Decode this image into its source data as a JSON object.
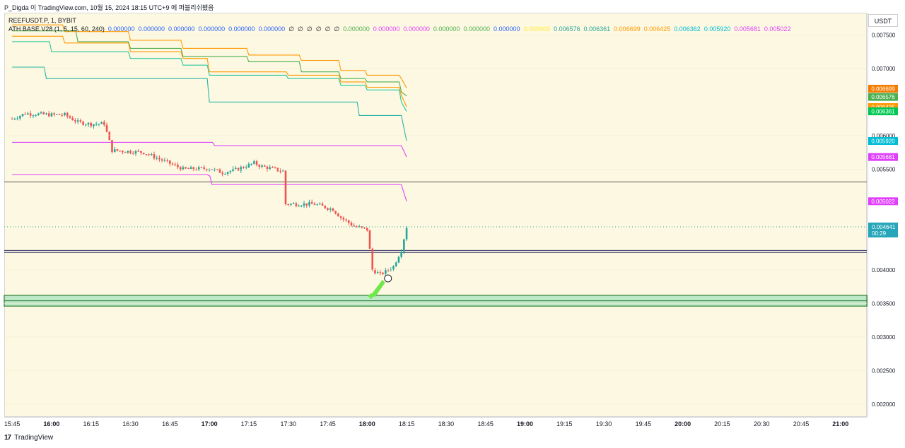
{
  "header": {
    "publisher_line": "P_Digda 이 TradingView.com, 10월 15, 2024 18:15 UTC+9 에 퍼블리쉬됐음"
  },
  "legend": {
    "symbol_line": "REEFUSDT.P, 1, BYBIT",
    "indicator_name": "ATH BASE V28 (1, 5, 15, 60, 240)",
    "values": [
      {
        "text": "0.000000",
        "color": "#2962ff"
      },
      {
        "text": "0.000000",
        "color": "#2962ff"
      },
      {
        "text": "0.000000",
        "color": "#2962ff"
      },
      {
        "text": "0.000000",
        "color": "#2962ff"
      },
      {
        "text": "0.000000",
        "color": "#2962ff"
      },
      {
        "text": "0.000000",
        "color": "#2962ff"
      },
      {
        "text": "∅",
        "color": "#131722"
      },
      {
        "text": "∅",
        "color": "#131722"
      },
      {
        "text": "∅",
        "color": "#131722"
      },
      {
        "text": "∅",
        "color": "#131722"
      },
      {
        "text": "∅",
        "color": "#131722"
      },
      {
        "text": "∅",
        "color": "#131722"
      },
      {
        "text": "0.000000",
        "color": "#4caf50"
      },
      {
        "text": "0.000000",
        "color": "#e040fb"
      },
      {
        "text": "0.000000",
        "color": "#e040fb"
      },
      {
        "text": "0.000000",
        "color": "#4caf50"
      },
      {
        "text": "0.000000",
        "color": "#4caf50"
      },
      {
        "text": "0.000000",
        "color": "#2962ff"
      },
      {
        "text": "0.000000",
        "color": "#ffeb3b"
      },
      {
        "text": "0.006576",
        "color": "#26a69a"
      },
      {
        "text": "0.006361",
        "color": "#26a69a"
      },
      {
        "text": "0.006699",
        "color": "#ff9800"
      },
      {
        "text": "0.006425",
        "color": "#ff9800"
      },
      {
        "text": "0.006362",
        "color": "#00bcd4"
      },
      {
        "text": "0.005920",
        "color": "#00bcd4"
      },
      {
        "text": "0.005681",
        "color": "#e040fb"
      },
      {
        "text": "0.005022",
        "color": "#e040fb"
      }
    ]
  },
  "axis": {
    "currency": "USDT"
  },
  "footer": {
    "brand": "TradingView",
    "logo_mark": "17"
  },
  "colors": {
    "background": "#fdf8e1",
    "up_candle": "#26a69a",
    "down_candle": "#ef5350",
    "grid": "#f0ead0",
    "signal": "#6fe84b"
  },
  "chart_data": {
    "type": "candlestick",
    "symbol": "REEFUSDT.P",
    "timeframe": "1",
    "exchange": "BYBIT",
    "ylim": [
      0.00182,
      0.00782
    ],
    "y_ticks": [
      "0.007500",
      "0.007000",
      "0.006000",
      "0.005500",
      "0.004000",
      "0.003500",
      "0.003000",
      "0.002500",
      "0.002000"
    ],
    "x_ticks": [
      "15:45",
      "16:00",
      "16:15",
      "16:30",
      "16:45",
      "17:00",
      "17:15",
      "17:30",
      "17:45",
      "18:00",
      "18:15",
      "18:30",
      "18:45",
      "19:00",
      "19:15",
      "19:30",
      "19:45",
      "20:00",
      "20:15",
      "20:30",
      "20:45",
      "21:00"
    ],
    "x_bold_ticks": [
      "16:00",
      "17:00",
      "18:00",
      "19:00",
      "20:00",
      "21:00"
    ],
    "close_path": [
      [
        "15:45",
        0.00625
      ],
      [
        "15:50",
        0.00633
      ],
      [
        "16:00",
        0.00631
      ],
      [
        "16:05",
        0.00631
      ],
      [
        "16:10",
        0.0062
      ],
      [
        "16:15",
        0.00617
      ],
      [
        "16:20",
        0.00618
      ],
      [
        "16:23",
        0.00578
      ],
      [
        "16:35",
        0.00575
      ],
      [
        "16:50",
        0.0055
      ],
      [
        "17:00",
        0.00551
      ],
      [
        "17:05",
        0.00545
      ],
      [
        "17:10",
        0.00549
      ],
      [
        "17:17",
        0.00559
      ],
      [
        "17:20",
        0.00554
      ],
      [
        "17:28",
        0.00547
      ],
      [
        "17:29",
        0.00498
      ],
      [
        "17:40",
        0.00498
      ],
      [
        "17:47",
        0.0049
      ],
      [
        "17:50",
        0.00478
      ],
      [
        "17:55",
        0.00465
      ],
      [
        "18:00",
        0.0046
      ],
      [
        "18:02",
        0.004
      ],
      [
        "18:05",
        0.00393
      ],
      [
        "18:10",
        0.00405
      ],
      [
        "18:13",
        0.0043
      ],
      [
        "18:15",
        0.00464
      ]
    ],
    "current_price": {
      "label": "0.004641",
      "countdown": "00:29",
      "value": 0.004641
    },
    "price_labels": [
      {
        "text": "0.006699",
        "value": 0.006699,
        "color": "#f57c00"
      },
      {
        "text": "0.006576",
        "value": 0.006576,
        "color": "#4caf50"
      },
      {
        "text": "0.006425",
        "value": 0.006425,
        "color": "#ff9800"
      },
      {
        "text": "0.006362",
        "value": 0.006362,
        "color": "#0097a7"
      },
      {
        "text": "0.006361",
        "value": 0.006361,
        "color": "#00c853"
      },
      {
        "text": "0.005920",
        "value": 0.00592,
        "color": "#00bcd4"
      },
      {
        "text": "0.005681",
        "value": 0.005681,
        "color": "#e040fb"
      },
      {
        "text": "0.005022",
        "value": 0.005022,
        "color": "#e040fb"
      }
    ],
    "horizontal_lines": [
      {
        "value": 0.00531,
        "color": "#555555"
      },
      {
        "value": 0.00429,
        "color": "#333366"
      },
      {
        "value": 0.00426,
        "color": "#333366"
      }
    ],
    "zones": [
      {
        "from": 0.00346,
        "to": 0.00362,
        "color": "#bde8c8",
        "border": "#2e7d32"
      }
    ],
    "series": [
      {
        "name": "orange-line",
        "color": "#ff9800",
        "points": [
          [
            "15:45",
            0.00765
          ],
          [
            "16:05",
            0.00755
          ],
          [
            "16:30",
            0.00742
          ],
          [
            "16:50",
            0.0073
          ],
          [
            "17:15",
            0.0072
          ],
          [
            "17:35",
            0.00712
          ],
          [
            "17:50",
            0.00697
          ],
          [
            "18:00",
            0.0069
          ],
          [
            "18:13",
            0.00685
          ],
          [
            "18:15",
            0.00671
          ]
        ]
      },
      {
        "name": "green-line",
        "color": "#4caf50",
        "points": [
          [
            "15:45",
            0.00756
          ],
          [
            "16:10",
            0.0074
          ],
          [
            "16:30",
            0.0073
          ],
          [
            "16:50",
            0.00718
          ],
          [
            "17:15",
            0.0071
          ],
          [
            "17:35",
            0.00695
          ],
          [
            "17:50",
            0.00685
          ],
          [
            "18:00",
            0.0068
          ],
          [
            "18:13",
            0.00665
          ],
          [
            "18:15",
            0.00659
          ]
        ]
      },
      {
        "name": "orange-line-2",
        "color": "#ff9800",
        "points": [
          [
            "15:45",
            0.00748
          ],
          [
            "16:05",
            0.00738
          ],
          [
            "16:30",
            0.00725
          ],
          [
            "16:50",
            0.00715
          ],
          [
            "17:00",
            0.00695
          ],
          [
            "17:30",
            0.0069
          ],
          [
            "17:50",
            0.0068
          ],
          [
            "18:00",
            0.00672
          ],
          [
            "18:13",
            0.0066
          ],
          [
            "18:15",
            0.00643
          ]
        ]
      },
      {
        "name": "teal-line",
        "color": "#26c6a0",
        "points": [
          [
            "15:45",
            0.0074
          ],
          [
            "16:00",
            0.00725
          ],
          [
            "16:30",
            0.00715
          ],
          [
            "16:50",
            0.00705
          ],
          [
            "17:00",
            0.0069
          ],
          [
            "17:30",
            0.00685
          ],
          [
            "17:50",
            0.00675
          ],
          [
            "18:00",
            0.00668
          ],
          [
            "18:13",
            0.0065
          ],
          [
            "18:15",
            0.00636
          ]
        ]
      },
      {
        "name": "cyan-line",
        "color": "#26b5a8",
        "points": [
          [
            "15:45",
            0.00702
          ],
          [
            "15:58",
            0.00685
          ],
          [
            "16:50",
            0.00685
          ],
          [
            "17:00",
            0.0065
          ],
          [
            "17:55",
            0.0065
          ],
          [
            "17:57",
            0.0063
          ],
          [
            "18:13",
            0.0063
          ],
          [
            "18:15",
            0.00592
          ]
        ]
      },
      {
        "name": "magenta-line",
        "color": "#e040fb",
        "points": [
          [
            "15:45",
            0.0059
          ],
          [
            "17:00",
            0.0059
          ],
          [
            "17:02",
            0.00585
          ],
          [
            "18:13",
            0.00585
          ],
          [
            "18:15",
            0.00568
          ]
        ]
      },
      {
        "name": "magenta-line-2",
        "color": "#e040fb",
        "points": [
          [
            "15:45",
            0.00542
          ],
          [
            "17:00",
            0.0054
          ],
          [
            "17:01",
            0.00527
          ],
          [
            "18:13",
            0.00527
          ],
          [
            "18:15",
            0.00502
          ]
        ]
      }
    ]
  }
}
